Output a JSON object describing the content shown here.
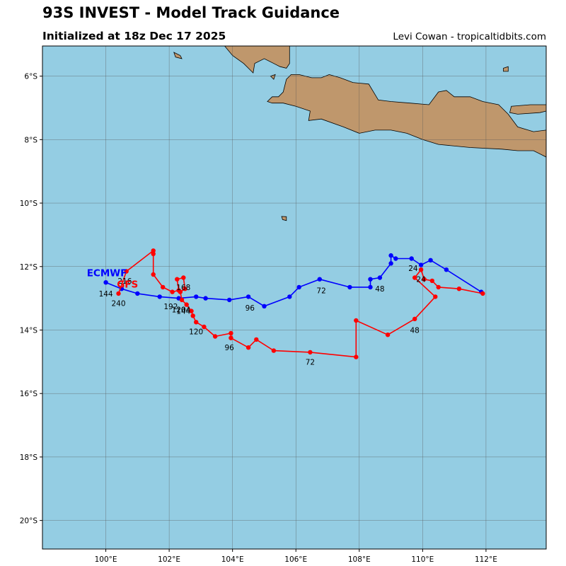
{
  "header": {
    "title": "93S INVEST - Model Track Guidance",
    "initialized": "Initialized at 18z Dec 17 2025",
    "credit": "Levi Cowan - tropicaltidbits.com"
  },
  "map": {
    "lon_range": [
      98,
      113.9
    ],
    "lat_range": [
      -20.9,
      -5.05
    ],
    "ocean_color": "#94cde3",
    "land_color": "#bf976c",
    "grid_color": "#555555",
    "lon_ticks": [
      {
        "value": 100,
        "label": "100°E"
      },
      {
        "value": 102,
        "label": "102°E"
      },
      {
        "value": 104,
        "label": "104°E"
      },
      {
        "value": 106,
        "label": "106°E"
      },
      {
        "value": 108,
        "label": "108°E"
      },
      {
        "value": 110,
        "label": "110°E"
      },
      {
        "value": 112,
        "label": "112°E"
      }
    ],
    "lat_ticks": [
      {
        "value": -6,
        "label": "6°S"
      },
      {
        "value": -8,
        "label": "8°S"
      },
      {
        "value": -10,
        "label": "10°S"
      },
      {
        "value": -12,
        "label": "12°S"
      },
      {
        "value": -14,
        "label": "14°S"
      },
      {
        "value": -16,
        "label": "16°S"
      },
      {
        "value": -18,
        "label": "18°S"
      },
      {
        "value": -20,
        "label": "20°S"
      }
    ],
    "land": [
      {
        "name": "java",
        "coords": [
          [
            105.1,
            -6.8
          ],
          [
            105.25,
            -6.65
          ],
          [
            105.45,
            -6.65
          ],
          [
            105.6,
            -6.5
          ],
          [
            105.7,
            -6.1
          ],
          [
            105.85,
            -5.95
          ],
          [
            106.1,
            -5.95
          ],
          [
            106.5,
            -6.05
          ],
          [
            106.8,
            -6.05
          ],
          [
            107.05,
            -5.95
          ],
          [
            107.4,
            -6.05
          ],
          [
            107.8,
            -6.2
          ],
          [
            108.3,
            -6.25
          ],
          [
            108.6,
            -6.75
          ],
          [
            109.0,
            -6.8
          ],
          [
            109.6,
            -6.85
          ],
          [
            110.2,
            -6.9
          ],
          [
            110.5,
            -6.5
          ],
          [
            110.75,
            -6.45
          ],
          [
            111.0,
            -6.65
          ],
          [
            111.5,
            -6.65
          ],
          [
            111.9,
            -6.8
          ],
          [
            112.4,
            -6.9
          ],
          [
            112.7,
            -7.2
          ],
          [
            113.0,
            -7.6
          ],
          [
            113.5,
            -7.75
          ],
          [
            113.9,
            -7.7
          ],
          [
            113.9,
            -8.55
          ],
          [
            113.5,
            -8.35
          ],
          [
            113.0,
            -8.35
          ],
          [
            112.5,
            -8.3
          ],
          [
            111.5,
            -8.25
          ],
          [
            110.5,
            -8.15
          ],
          [
            110.0,
            -8.0
          ],
          [
            109.5,
            -7.8
          ],
          [
            109.0,
            -7.7
          ],
          [
            108.5,
            -7.7
          ],
          [
            108.0,
            -7.8
          ],
          [
            107.5,
            -7.6
          ],
          [
            106.8,
            -7.35
          ],
          [
            106.4,
            -7.4
          ],
          [
            106.45,
            -7.1
          ],
          [
            106.0,
            -6.95
          ],
          [
            105.6,
            -6.85
          ],
          [
            105.25,
            -6.85
          ]
        ]
      },
      {
        "name": "madura",
        "coords": [
          [
            112.75,
            -7.15
          ],
          [
            112.8,
            -6.95
          ],
          [
            113.4,
            -6.9
          ],
          [
            113.9,
            -6.9
          ],
          [
            113.9,
            -7.1
          ],
          [
            113.7,
            -7.15
          ],
          [
            113.0,
            -7.2
          ]
        ]
      },
      {
        "name": "sumatra-tip",
        "coords": [
          [
            103.75,
            -5.05
          ],
          [
            105.8,
            -5.05
          ],
          [
            105.8,
            -5.6
          ],
          [
            105.7,
            -5.75
          ],
          [
            105.5,
            -5.7
          ],
          [
            105.3,
            -5.6
          ],
          [
            105.0,
            -5.45
          ],
          [
            104.7,
            -5.6
          ],
          [
            104.65,
            -5.9
          ],
          [
            104.35,
            -5.6
          ],
          [
            104.0,
            -5.35
          ]
        ]
      },
      {
        "name": "sebesi",
        "coords": [
          [
            105.2,
            -6.0
          ],
          [
            105.35,
            -5.95
          ],
          [
            105.3,
            -6.1
          ]
        ]
      },
      {
        "name": "enggano",
        "coords": [
          [
            102.15,
            -5.25
          ],
          [
            102.35,
            -5.35
          ],
          [
            102.4,
            -5.45
          ],
          [
            102.2,
            -5.4
          ]
        ]
      },
      {
        "name": "bawean",
        "coords": [
          [
            112.55,
            -5.75
          ],
          [
            112.7,
            -5.7
          ],
          [
            112.7,
            -5.85
          ],
          [
            112.55,
            -5.85
          ]
        ]
      },
      {
        "name": "christmas-island",
        "coords": [
          [
            105.55,
            -10.42
          ],
          [
            105.7,
            -10.43
          ],
          [
            105.7,
            -10.55
          ],
          [
            105.58,
            -10.52
          ]
        ]
      }
    ]
  },
  "tracks": [
    {
      "model": "ECMWF",
      "color": "#0000ff",
      "label_position": [
        99.4,
        -12.2
      ],
      "points": [
        [
          111.85,
          -12.8
        ],
        [
          110.75,
          -12.1
        ],
        [
          110.25,
          -11.8
        ],
        [
          109.95,
          -11.95
        ],
        [
          109.65,
          -11.75
        ],
        [
          109.15,
          -11.75
        ],
        [
          109.0,
          -11.65
        ],
        [
          109.0,
          -11.9
        ],
        [
          108.65,
          -12.35
        ],
        [
          108.35,
          -12.4
        ],
        [
          108.35,
          -12.65
        ],
        [
          107.7,
          -12.65
        ],
        [
          106.75,
          -12.4
        ],
        [
          106.1,
          -12.65
        ],
        [
          105.8,
          -12.95
        ],
        [
          105.0,
          -13.25
        ],
        [
          104.5,
          -12.95
        ],
        [
          103.9,
          -13.05
        ],
        [
          103.15,
          -13.0
        ],
        [
          102.85,
          -12.95
        ],
        [
          102.3,
          -13.0
        ],
        [
          101.7,
          -12.95
        ],
        [
          101.0,
          -12.85
        ],
        [
          100.5,
          -12.7
        ],
        [
          100.0,
          -12.5
        ]
      ],
      "hour_labels": [
        {
          "text": "24",
          "pos": [
            109.7,
            -12.05
          ]
        },
        {
          "text": "48",
          "pos": [
            108.65,
            -12.7
          ]
        },
        {
          "text": "72",
          "pos": [
            106.8,
            -12.75
          ]
        },
        {
          "text": "96",
          "pos": [
            104.55,
            -13.3
          ]
        },
        {
          "text": "120",
          "pos": [
            102.3,
            -13.35
          ]
        },
        {
          "text": "144",
          "pos": [
            100.0,
            -12.85
          ]
        }
      ]
    },
    {
      "model": "GFS",
      "color": "#ff0000",
      "label_position": [
        100.35,
        -12.55
      ],
      "points": [
        [
          111.9,
          -12.85
        ],
        [
          111.15,
          -12.7
        ],
        [
          110.5,
          -12.65
        ],
        [
          110.3,
          -12.45
        ],
        [
          110.05,
          -12.4
        ],
        [
          109.95,
          -12.1
        ],
        [
          109.75,
          -12.35
        ],
        [
          110.4,
          -12.95
        ],
        [
          109.75,
          -13.65
        ],
        [
          108.9,
          -14.15
        ],
        [
          107.9,
          -13.7
        ],
        [
          107.9,
          -14.85
        ],
        [
          106.45,
          -14.7
        ],
        [
          105.3,
          -14.65
        ],
        [
          104.75,
          -14.3
        ],
        [
          104.5,
          -14.55
        ],
        [
          103.95,
          -14.25
        ],
        [
          103.95,
          -14.1
        ],
        [
          103.45,
          -14.2
        ],
        [
          103.1,
          -13.9
        ],
        [
          102.85,
          -13.75
        ],
        [
          102.75,
          -13.55
        ],
        [
          102.7,
          -13.4
        ],
        [
          102.55,
          -13.2
        ],
        [
          102.4,
          -13.05
        ],
        [
          102.35,
          -12.8
        ],
        [
          102.5,
          -12.7
        ],
        [
          102.45,
          -12.35
        ],
        [
          102.25,
          -12.4
        ],
        [
          102.3,
          -12.75
        ],
        [
          102.1,
          -12.8
        ],
        [
          101.8,
          -12.65
        ],
        [
          101.5,
          -12.25
        ],
        [
          101.5,
          -11.6
        ],
        [
          101.5,
          -11.5
        ],
        [
          100.65,
          -12.15
        ],
        [
          100.4,
          -12.85
        ]
      ],
      "hour_labels": [
        {
          "text": "24",
          "pos": [
            109.95,
            -12.4
          ]
        },
        {
          "text": "48",
          "pos": [
            109.75,
            -14.0
          ]
        },
        {
          "text": "72",
          "pos": [
            106.45,
            -15.0
          ]
        },
        {
          "text": "96",
          "pos": [
            103.9,
            -14.55
          ]
        },
        {
          "text": "120",
          "pos": [
            102.85,
            -14.05
          ]
        },
        {
          "text": "144",
          "pos": [
            102.45,
            -13.4
          ]
        },
        {
          "text": "168",
          "pos": [
            102.45,
            -12.65
          ]
        },
        {
          "text": "192",
          "pos": [
            102.05,
            -13.25
          ]
        },
        {
          "text": "204",
          "pos": [
            102.45,
            -13.35
          ]
        },
        {
          "text": "216",
          "pos": [
            100.6,
            -12.45
          ]
        },
        {
          "text": "240",
          "pos": [
            100.4,
            -13.15
          ]
        }
      ]
    }
  ]
}
